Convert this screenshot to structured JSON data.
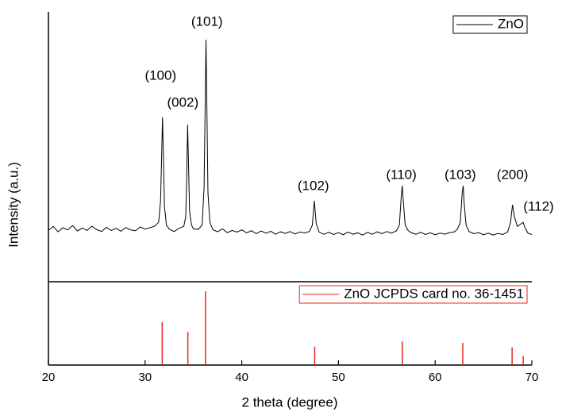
{
  "chart_data": [
    {
      "type": "line",
      "ylabel": "Intensity (a.u.)",
      "legend": "upper right",
      "xlim": [
        20,
        70
      ],
      "ylim": [
        0,
        100
      ],
      "x": [
        20,
        20.5,
        21,
        21.5,
        22,
        22.5,
        23,
        23.5,
        24,
        24.5,
        25,
        25.5,
        26,
        26.5,
        27,
        27.5,
        28,
        28.5,
        29,
        29.5,
        30,
        30.5,
        31,
        31.4,
        31.6,
        31.7,
        31.8,
        31.9,
        32,
        32.2,
        32.5,
        33,
        33.5,
        34,
        34.2,
        34.3,
        34.4,
        34.5,
        34.6,
        34.8,
        35,
        35.5,
        35.9,
        36.1,
        36.2,
        36.3,
        36.4,
        36.5,
        36.7,
        37,
        37.5,
        38,
        38.5,
        39,
        39.5,
        40,
        40.5,
        41,
        41.5,
        42,
        42.5,
        43,
        43.5,
        44,
        44.5,
        45,
        45.5,
        46,
        46.5,
        47,
        47.3,
        47.5,
        47.7,
        48,
        48.5,
        49,
        49.5,
        50,
        50.5,
        51,
        51.5,
        52,
        52.5,
        53,
        53.5,
        54,
        54.5,
        55,
        55.5,
        56,
        56.3,
        56.5,
        56.6,
        56.7,
        56.9,
        57.2,
        57.5,
        58,
        58.5,
        59,
        59.5,
        60,
        60.5,
        61,
        61.5,
        62,
        62.3,
        62.6,
        62.8,
        62.9,
        63,
        63.2,
        63.5,
        64,
        64.5,
        65,
        65.5,
        66,
        66.5,
        67,
        67.5,
        67.8,
        68,
        68.2,
        68.5,
        68.9,
        69.1,
        69.3,
        69.6,
        70
      ],
      "series": [
        {
          "name": "ZnO",
          "color": "#000000",
          "values": [
            19,
            20.5,
            18.5,
            20,
            19.2,
            20.8,
            18.8,
            19.9,
            19,
            20.6,
            19.3,
            18.6,
            20.2,
            19,
            19.8,
            18.7,
            20.1,
            19.2,
            18.9,
            20.3,
            19.5,
            20,
            20.6,
            22,
            30,
            45,
            60.9,
            46,
            28,
            21,
            19.5,
            18.6,
            19.8,
            20.5,
            24,
            38,
            58.2,
            42,
            26,
            21,
            19.6,
            19.4,
            21,
            35,
            62,
            89.7,
            62,
            33,
            22,
            19.3,
            18.5,
            19.6,
            18.2,
            19,
            18.4,
            19.2,
            18.1,
            18.9,
            17.8,
            18.8,
            18,
            18.7,
            17.6,
            18.5,
            17.9,
            18.6,
            17.7,
            18.4,
            18.1,
            18.6,
            21,
            30,
            21.5,
            18.4,
            17.6,
            18.3,
            17.5,
            18.2,
            17.4,
            18.4,
            17.6,
            18.1,
            17.3,
            18.3,
            17.6,
            18.5,
            17.8,
            18.6,
            18,
            18.9,
            21,
            32,
            35.6,
            30,
            21,
            19,
            18.2,
            17.6,
            18.3,
            17.5,
            18.1,
            17.4,
            18,
            17.6,
            18.2,
            18.5,
            19.5,
            22,
            33,
            35.6,
            29,
            21,
            18.6,
            17.8,
            18.2,
            17.4,
            18,
            17.3,
            17.9,
            17.5,
            18.4,
            22,
            28.5,
            24,
            20.5,
            21.5,
            22,
            20,
            18,
            17.5
          ]
        }
      ],
      "annotations": [
        {
          "text": "(100)",
          "x": 31.6,
          "y": 76.2
        },
        {
          "text": "(002)",
          "x": 33.9,
          "y": 66.2
        },
        {
          "text": "(101)",
          "x": 36.4,
          "y": 96.2
        },
        {
          "text": "(102)",
          "x": 47.4,
          "y": 35.3
        },
        {
          "text": "(110)",
          "x": 56.5,
          "y": 39.4
        },
        {
          "text": "(103)",
          "x": 62.6,
          "y": 39.4
        },
        {
          "text": "(200)",
          "x": 68.0,
          "y": 39.4
        },
        {
          "text": "(112)",
          "x": 70.7,
          "y": 27.6
        }
      ]
    },
    {
      "type": "stem",
      "xlabel": "2 theta (degree)",
      "legend": "upper right",
      "xlim": [
        20,
        70
      ],
      "ylim": [
        0,
        113
      ],
      "xticks": [
        20,
        30,
        40,
        50,
        60,
        70
      ],
      "x": [
        31.77,
        34.42,
        36.25,
        47.54,
        56.6,
        62.86,
        67.96,
        69.1
      ],
      "series": [
        {
          "name": "ZnO JCPDS card no. 36-1451",
          "color": "#e8261f",
          "values": [
            58,
            45,
            100,
            25,
            32,
            30,
            24,
            12
          ]
        }
      ]
    }
  ]
}
